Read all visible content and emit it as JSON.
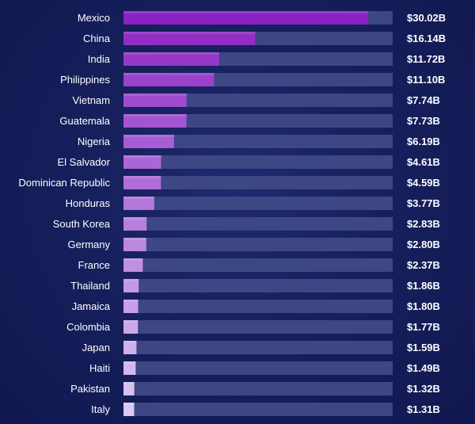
{
  "chart_data": {
    "type": "bar",
    "orientation": "horizontal",
    "title": "",
    "xlabel": "",
    "ylabel": "",
    "categories": [
      "Mexico",
      "China",
      "India",
      "Philippines",
      "Vietnam",
      "Guatemala",
      "Nigeria",
      "El Salvador",
      "Dominican Republic",
      "Honduras",
      "South Korea",
      "Germany",
      "France",
      "Thailand",
      "Jamaica",
      "Colombia",
      "Japan",
      "Haiti",
      "Pakistan",
      "Italy"
    ],
    "values": [
      30.02,
      16.14,
      11.72,
      11.1,
      7.74,
      7.73,
      6.19,
      4.61,
      4.59,
      3.77,
      2.83,
      2.8,
      2.37,
      1.86,
      1.8,
      1.77,
      1.59,
      1.49,
      1.32,
      1.31
    ],
    "value_labels": [
      "$30.02B",
      "$16.14B",
      "$11.72B",
      "$11.10B",
      "$7.74B",
      "$7.73B",
      "$6.19B",
      "$4.61B",
      "$4.59B",
      "$3.77B",
      "$2.83B",
      "$2.80B",
      "$2.37B",
      "$1.86B",
      "$1.80B",
      "$1.77B",
      "$1.59B",
      "$1.49B",
      "$1.32B",
      "$1.31B"
    ],
    "xlim": [
      0,
      33
    ],
    "grid": false,
    "legend": "none",
    "colors": {
      "track": "#3c4784",
      "bar_top": "#8a22c2",
      "bar_bottom": "#dcc8f2",
      "text": "#ffffff"
    }
  }
}
